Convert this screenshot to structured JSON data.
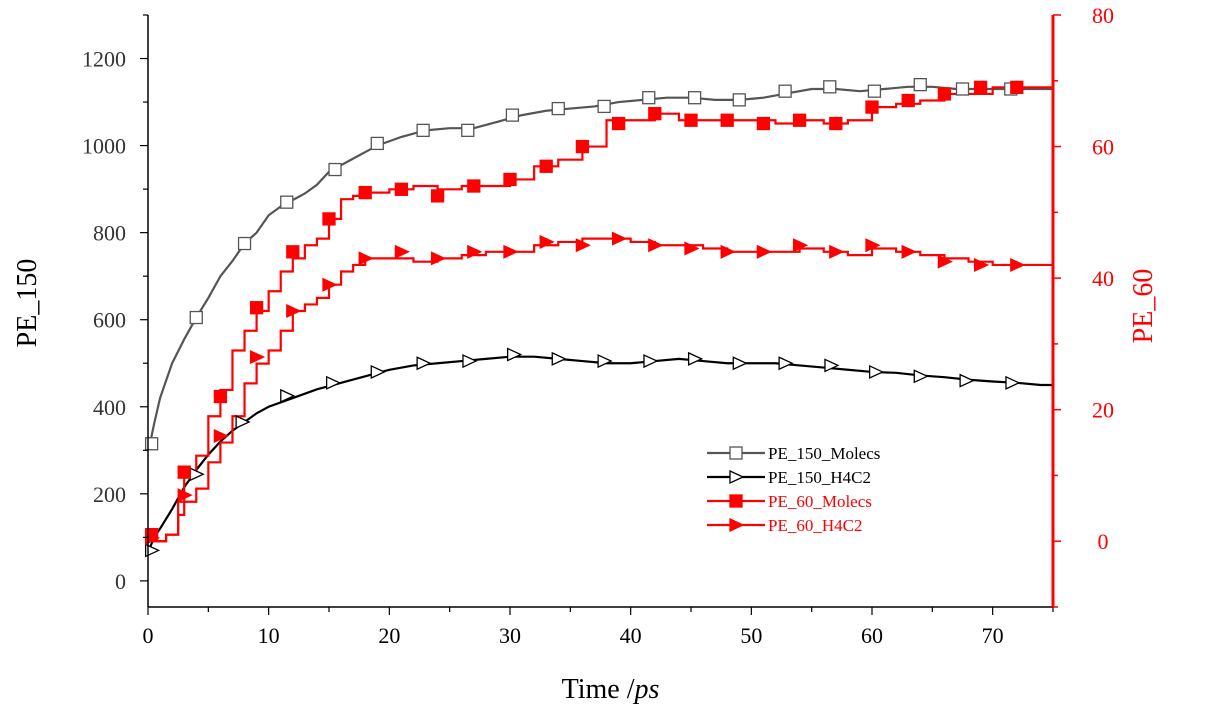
{
  "chart_data": {
    "type": "line",
    "xlabel": "Time /ps",
    "xlabel_main": "Time /",
    "xlabel_unit": "ps",
    "ylabel_left": "PE_150",
    "ylabel_right": "PE_60",
    "xlim": [
      0,
      75
    ],
    "ylim_left": [
      -60,
      1300
    ],
    "ylim_right": [
      -10,
      80
    ],
    "xticks": [
      "0",
      "10",
      "20",
      "30",
      "40",
      "50",
      "60",
      "70"
    ],
    "yticks_left": [
      "0",
      "200",
      "400",
      "600",
      "800",
      "1000",
      "1200"
    ],
    "yticks_right": [
      "0",
      "20",
      "40",
      "60",
      "80"
    ],
    "grid": false,
    "legend_position": "lower-right",
    "series": [
      {
        "name": "PE_150_Molecs",
        "axis": "left",
        "color": "#555555",
        "marker": "open-square",
        "x": [
          0.2,
          0.5,
          1,
          1.5,
          2,
          3,
          4,
          5,
          6,
          7,
          8,
          9,
          10,
          11,
          12,
          13,
          14,
          15,
          17,
          19,
          21,
          23,
          25,
          27,
          29,
          31,
          33,
          35,
          37,
          39,
          41,
          43,
          45,
          47,
          49,
          51,
          53,
          55,
          57,
          59,
          61,
          63,
          65,
          67,
          69,
          71,
          73,
          75
        ],
        "values": [
          320,
          360,
          420,
          460,
          500,
          555,
          605,
          650,
          700,
          735,
          775,
          800,
          840,
          860,
          875,
          890,
          910,
          940,
          970,
          1000,
          1020,
          1035,
          1040,
          1040,
          1055,
          1070,
          1080,
          1085,
          1090,
          1100,
          1105,
          1110,
          1110,
          1105,
          1105,
          1110,
          1120,
          1130,
          1130,
          1125,
          1130,
          1135,
          1135,
          1130,
          1130,
          1130,
          1130,
          1130
        ],
        "marker_x": [
          0.3,
          4,
          8,
          11.5,
          15.5,
          19,
          22.8,
          26.5,
          30.2,
          34,
          37.8,
          41.5,
          45.3,
          49,
          52.8,
          56.5,
          60.2,
          64,
          67.5,
          71.5
        ],
        "marker_values": [
          315,
          605,
          775,
          870,
          945,
          1005,
          1035,
          1035,
          1070,
          1085,
          1090,
          1110,
          1110,
          1105,
          1125,
          1135,
          1125,
          1140,
          1130,
          1130
        ]
      },
      {
        "name": "PE_150_H4C2",
        "axis": "left",
        "color": "#000000",
        "marker": "open-triangle-right",
        "x": [
          0,
          0.5,
          1,
          2,
          3,
          4,
          5,
          6,
          7,
          8,
          9,
          10,
          12,
          14,
          16,
          18,
          20,
          22,
          24,
          26,
          28,
          30,
          32,
          34,
          36,
          38,
          40,
          42,
          44,
          46,
          48,
          50,
          52,
          54,
          56,
          58,
          60,
          62,
          64,
          66,
          68,
          70,
          72,
          74,
          75
        ],
        "values": [
          65,
          100,
          120,
          165,
          215,
          255,
          290,
          320,
          345,
          365,
          385,
          400,
          420,
          440,
          455,
          470,
          485,
          495,
          500,
          505,
          510,
          515,
          515,
          510,
          505,
          500,
          500,
          505,
          510,
          505,
          500,
          500,
          500,
          495,
          490,
          485,
          480,
          478,
          472,
          468,
          462,
          458,
          455,
          450,
          450
        ],
        "marker_x": [
          0.3,
          4,
          7.8,
          11.5,
          15.3,
          19,
          22.8,
          26.6,
          30.3,
          34,
          37.8,
          41.6,
          45.3,
          49,
          52.8,
          56.6,
          60.3,
          64,
          67.8,
          71.6
        ],
        "marker_values": [
          70,
          245,
          365,
          425,
          455,
          480,
          500,
          505,
          520,
          510,
          505,
          505,
          510,
          500,
          500,
          495,
          480,
          470,
          460,
          455
        ]
      },
      {
        "name": "PE_60_Molecs",
        "axis": "right",
        "color": "#ff0000",
        "marker": "filled-square",
        "x": [
          0,
          1.5,
          2.5,
          3,
          4,
          5,
          6,
          7,
          8,
          9,
          10,
          11,
          12,
          13,
          14,
          15,
          16,
          17,
          18,
          20,
          22,
          24,
          26,
          28,
          30,
          32,
          34,
          36,
          38,
          40,
          42,
          44,
          46,
          48,
          50,
          52,
          54,
          56,
          58,
          60,
          62,
          64,
          66,
          68,
          70,
          72,
          74,
          75
        ],
        "values": [
          0,
          1,
          6,
          10,
          13,
          19,
          23,
          29,
          32,
          35,
          38,
          41,
          43,
          45,
          46,
          49,
          52,
          52.5,
          53,
          53.5,
          54,
          53.5,
          54,
          54,
          55,
          57,
          58,
          60,
          64,
          64,
          65,
          64,
          64,
          64,
          64,
          63.5,
          64,
          63.5,
          64,
          66,
          66.5,
          67,
          68,
          68,
          69,
          69,
          69,
          69
        ],
        "marker_x": [
          0.3,
          3,
          6,
          9,
          12,
          15,
          18,
          21,
          24,
          27,
          30,
          33,
          36,
          39,
          42,
          45,
          48,
          51,
          54,
          57,
          60,
          63,
          66,
          69,
          72
        ],
        "marker_values": [
          1,
          10.5,
          22,
          35.5,
          44,
          49,
          53,
          53.5,
          52.5,
          54,
          55,
          57,
          60,
          63.5,
          65,
          64,
          64,
          63.5,
          64,
          63.5,
          66,
          67,
          68,
          69,
          69
        ]
      },
      {
        "name": "PE_60_H4C2",
        "axis": "right",
        "color": "#ff0000",
        "marker": "filled-triangle-right",
        "x": [
          0,
          1.5,
          2.5,
          3,
          4,
          5,
          6,
          7,
          8,
          9,
          10,
          11,
          12,
          13,
          14,
          15,
          16,
          17,
          18,
          20,
          22,
          24,
          26,
          28,
          30,
          32,
          34,
          36,
          38,
          40,
          42,
          44,
          46,
          48,
          50,
          52,
          54,
          56,
          58,
          60,
          62,
          64,
          66,
          68,
          70,
          72,
          74,
          75
        ],
        "values": [
          0,
          1,
          4,
          6,
          8,
          12,
          15,
          19,
          24,
          27,
          29,
          32,
          35,
          36,
          37,
          39,
          41,
          42,
          43,
          43,
          42.5,
          43,
          43.5,
          44,
          44,
          45,
          45.5,
          46,
          46,
          45.5,
          45,
          45,
          44.5,
          44,
          44,
          44,
          44.5,
          44,
          43.5,
          44.5,
          44,
          43.5,
          43,
          42.5,
          42,
          42,
          42,
          42
        ],
        "marker_x": [
          0.3,
          3,
          6,
          9,
          12,
          15,
          18,
          21,
          24,
          27,
          30,
          33,
          36,
          39,
          42,
          45,
          48,
          51,
          54,
          57,
          60,
          63,
          66,
          69,
          72
        ],
        "marker_values": [
          0.5,
          7,
          16,
          28,
          35,
          39,
          43,
          44,
          43,
          44,
          44,
          45.5,
          45,
          46,
          45,
          44.5,
          44,
          44,
          45,
          44,
          45,
          44,
          42.5,
          42,
          42
        ]
      }
    ]
  }
}
